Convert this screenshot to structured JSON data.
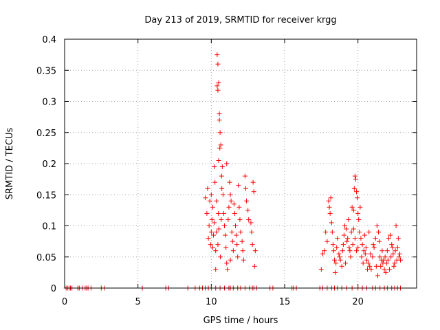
{
  "chart_data": {
    "type": "scatter",
    "title": "Day 213 of 2019, SRMTID for receiver krgg",
    "xlabel": "GPS time / hours",
    "ylabel": "SRMTID / TECUs",
    "xlim": [
      0,
      24
    ],
    "ylim": [
      0,
      0.4
    ],
    "grid": true,
    "marker": "+",
    "color": "#ff0000",
    "x_ticks": [
      0,
      5,
      10,
      15,
      20
    ],
    "x_tick_labels": [
      "0",
      "5",
      "10",
      "15",
      "20"
    ],
    "y_ticks": [
      0,
      0.05,
      0.1,
      0.15,
      0.2,
      0.25,
      0.3,
      0.35,
      0.4
    ],
    "y_tick_labels": [
      "0",
      "0.05",
      "0.1",
      "0.15",
      "0.2",
      "0.25",
      "0.3",
      "0.35",
      "0.4"
    ],
    "series": [
      {
        "name": "krgg",
        "points": [
          [
            0.1,
            0
          ],
          [
            0.2,
            0
          ],
          [
            0.3,
            0
          ],
          [
            0.4,
            0
          ],
          [
            0.5,
            0
          ],
          [
            0.9,
            0
          ],
          [
            1.0,
            0
          ],
          [
            1.2,
            0
          ],
          [
            1.4,
            0
          ],
          [
            1.5,
            0
          ],
          [
            1.6,
            0
          ],
          [
            1.8,
            0
          ],
          [
            2.5,
            0
          ],
          [
            2.7,
            0
          ],
          [
            5.3,
            0
          ],
          [
            6.9,
            0
          ],
          [
            7.1,
            0
          ],
          [
            8.4,
            0
          ],
          [
            8.9,
            0
          ],
          [
            9.2,
            0
          ],
          [
            9.4,
            0
          ],
          [
            9.6,
            0
          ],
          [
            9.8,
            0
          ],
          [
            10.0,
            0
          ],
          [
            10.3,
            0
          ],
          [
            10.6,
            0
          ],
          [
            10.9,
            0
          ],
          [
            11.2,
            0
          ],
          [
            11.3,
            0
          ],
          [
            11.5,
            0
          ],
          [
            11.8,
            0
          ],
          [
            12.0,
            0
          ],
          [
            12.3,
            0
          ],
          [
            12.6,
            0
          ],
          [
            12.8,
            0
          ],
          [
            12.9,
            0
          ],
          [
            13.1,
            0
          ],
          [
            14.0,
            0
          ],
          [
            14.2,
            0
          ],
          [
            15.5,
            0
          ],
          [
            15.6,
            0
          ],
          [
            15.8,
            0
          ],
          [
            17.4,
            0
          ],
          [
            17.6,
            0
          ],
          [
            17.9,
            0
          ],
          [
            18.2,
            0
          ],
          [
            18.4,
            0
          ],
          [
            18.6,
            0
          ],
          [
            18.9,
            0
          ],
          [
            19.2,
            0
          ],
          [
            19.6,
            0
          ],
          [
            20.0,
            0
          ],
          [
            20.3,
            0
          ],
          [
            20.6,
            0
          ],
          [
            21.0,
            0
          ],
          [
            21.2,
            0
          ],
          [
            21.5,
            0
          ],
          [
            21.8,
            0
          ],
          [
            22.0,
            0
          ],
          [
            22.3,
            0
          ],
          [
            22.5,
            0
          ],
          [
            22.7,
            0
          ],
          [
            22.9,
            0
          ],
          [
            9.6,
            0.145
          ],
          [
            9.7,
            0.12
          ],
          [
            9.75,
            0.16
          ],
          [
            9.8,
            0.08
          ],
          [
            9.85,
            0.1
          ],
          [
            9.9,
            0.14
          ],
          [
            9.95,
            0.07
          ],
          [
            10.0,
            0.09
          ],
          [
            10.05,
            0.11
          ],
          [
            10.1,
            0.13
          ],
          [
            10.15,
            0.085
          ],
          [
            10.2,
            0.195
          ],
          [
            10.25,
            0.17
          ],
          [
            10.3,
            0.06
          ],
          [
            10.35,
            0.14
          ],
          [
            10.4,
            0.375
          ],
          [
            10.45,
            0.36
          ],
          [
            10.5,
            0.33
          ],
          [
            10.55,
            0.27
          ],
          [
            10.6,
            0.25
          ],
          [
            10.65,
            0.23
          ],
          [
            10.7,
            0.18
          ],
          [
            10.72,
            0.16
          ],
          [
            10.5,
            0.205
          ],
          [
            10.58,
            0.225
          ],
          [
            10.48,
            0.12
          ],
          [
            10.52,
            0.095
          ],
          [
            10.62,
            0.05
          ],
          [
            10.68,
            0.11
          ],
          [
            10.75,
            0.195
          ],
          [
            10.8,
            0.15
          ],
          [
            10.85,
            0.12
          ],
          [
            10.9,
            0.1
          ],
          [
            10.95,
            0.085
          ],
          [
            11.0,
            0.065
          ],
          [
            11.05,
            0.04
          ],
          [
            11.1,
            0.03
          ],
          [
            11.15,
            0.11
          ],
          [
            11.2,
            0.13
          ],
          [
            11.25,
            0.17
          ],
          [
            11.3,
            0.15
          ],
          [
            11.35,
            0.14
          ],
          [
            11.4,
            0.09
          ],
          [
            11.45,
            0.075
          ],
          [
            11.5,
            0.06
          ],
          [
            11.55,
            0.135
          ],
          [
            11.6,
            0.12
          ],
          [
            11.65,
            0.1
          ],
          [
            11.7,
            0.085
          ],
          [
            11.75,
            0.07
          ],
          [
            11.8,
            0.05
          ],
          [
            11.85,
            0.165
          ],
          [
            11.9,
            0.13
          ],
          [
            11.95,
            0.11
          ],
          [
            12.0,
            0.09
          ],
          [
            12.1,
            0.075
          ],
          [
            12.15,
            0.06
          ],
          [
            12.2,
            0.045
          ],
          [
            12.3,
            0.18
          ],
          [
            12.35,
            0.16
          ],
          [
            12.4,
            0.14
          ],
          [
            12.5,
            0.125
          ],
          [
            12.55,
            0.11
          ],
          [
            12.7,
            0.105
          ],
          [
            12.75,
            0.09
          ],
          [
            12.8,
            0.07
          ],
          [
            12.85,
            0.17
          ],
          [
            12.9,
            0.155
          ],
          [
            12.95,
            0.035
          ],
          [
            13.0,
            0.06
          ],
          [
            10.4,
            0.325
          ],
          [
            10.45,
            0.318
          ],
          [
            10.55,
            0.28
          ],
          [
            10.3,
            0.03
          ],
          [
            10.0,
            0.15
          ],
          [
            10.1,
            0.065
          ],
          [
            10.2,
            0.105
          ],
          [
            10.35,
            0.09
          ],
          [
            10.45,
            0.07
          ],
          [
            11.05,
            0.2
          ],
          [
            11.3,
            0.045
          ],
          [
            17.5,
            0.03
          ],
          [
            17.6,
            0.055
          ],
          [
            17.7,
            0.06
          ],
          [
            17.8,
            0.09
          ],
          [
            17.9,
            0.075
          ],
          [
            18.0,
            0.14
          ],
          [
            18.05,
            0.13
          ],
          [
            18.1,
            0.12
          ],
          [
            18.15,
            0.145
          ],
          [
            18.2,
            0.105
          ],
          [
            18.25,
            0.09
          ],
          [
            18.3,
            0.07
          ],
          [
            18.35,
            0.06
          ],
          [
            18.4,
            0.045
          ],
          [
            18.45,
            0.025
          ],
          [
            18.5,
            0.04
          ],
          [
            18.6,
            0.08
          ],
          [
            18.7,
            0.055
          ],
          [
            18.8,
            0.045
          ],
          [
            18.9,
            0.035
          ],
          [
            19.0,
            0.07
          ],
          [
            19.1,
            0.1
          ],
          [
            19.2,
            0.095
          ],
          [
            19.3,
            0.08
          ],
          [
            19.4,
            0.065
          ],
          [
            19.5,
            0.05
          ],
          [
            19.6,
            0.13
          ],
          [
            19.7,
            0.125
          ],
          [
            19.75,
            0.16
          ],
          [
            19.8,
            0.18
          ],
          [
            19.85,
            0.175
          ],
          [
            19.9,
            0.155
          ],
          [
            19.95,
            0.145
          ],
          [
            20.0,
            0.12
          ],
          [
            20.05,
            0.11
          ],
          [
            20.1,
            0.09
          ],
          [
            20.2,
            0.08
          ],
          [
            20.3,
            0.07
          ],
          [
            20.4,
            0.06
          ],
          [
            20.5,
            0.055
          ],
          [
            20.6,
            0.045
          ],
          [
            20.7,
            0.04
          ],
          [
            20.8,
            0.035
          ],
          [
            20.9,
            0.03
          ],
          [
            21.0,
            0.05
          ],
          [
            21.1,
            0.065
          ],
          [
            21.2,
            0.08
          ],
          [
            21.3,
            0.1
          ],
          [
            21.4,
            0.09
          ],
          [
            21.5,
            0.05
          ],
          [
            21.6,
            0.045
          ],
          [
            21.7,
            0.04
          ],
          [
            21.8,
            0.03
          ],
          [
            21.9,
            0.025
          ],
          [
            22.0,
            0.06
          ],
          [
            22.1,
            0.08
          ],
          [
            22.2,
            0.085
          ],
          [
            22.3,
            0.07
          ],
          [
            22.4,
            0.055
          ],
          [
            22.5,
            0.04
          ],
          [
            22.6,
            0.1
          ],
          [
            22.7,
            0.065
          ],
          [
            22.8,
            0.05
          ],
          [
            22.9,
            0.045
          ],
          [
            19.15,
            0.04
          ],
          [
            19.35,
            0.11
          ],
          [
            19.55,
            0.09
          ],
          [
            19.65,
            0.07
          ],
          [
            19.9,
            0.06
          ],
          [
            20.15,
            0.13
          ],
          [
            20.25,
            0.05
          ],
          [
            20.45,
            0.085
          ],
          [
            20.55,
            0.065
          ],
          [
            20.75,
            0.09
          ],
          [
            20.85,
            0.055
          ],
          [
            21.05,
            0.07
          ],
          [
            21.25,
            0.035
          ],
          [
            21.45,
            0.075
          ],
          [
            21.65,
            0.06
          ],
          [
            21.85,
            0.05
          ],
          [
            22.05,
            0.045
          ],
          [
            22.15,
            0.03
          ],
          [
            22.35,
            0.065
          ],
          [
            22.55,
            0.06
          ],
          [
            22.75,
            0.08
          ],
          [
            22.85,
            0.055
          ],
          [
            18.55,
            0.065
          ],
          [
            18.75,
            0.05
          ],
          [
            18.95,
            0.06
          ],
          [
            19.05,
            0.085
          ],
          [
            19.25,
            0.075
          ],
          [
            19.45,
            0.06
          ],
          [
            19.7,
            0.095
          ],
          [
            19.8,
            0.08
          ],
          [
            20.0,
            0.065
          ],
          [
            20.35,
            0.04
          ],
          [
            20.65,
            0.03
          ],
          [
            21.35,
            0.02
          ],
          [
            21.55,
            0.035
          ],
          [
            21.75,
            0.045
          ],
          [
            21.95,
            0.04
          ],
          [
            22.25,
            0.05
          ],
          [
            22.45,
            0.035
          ],
          [
            22.65,
            0.045
          ]
        ]
      }
    ]
  }
}
